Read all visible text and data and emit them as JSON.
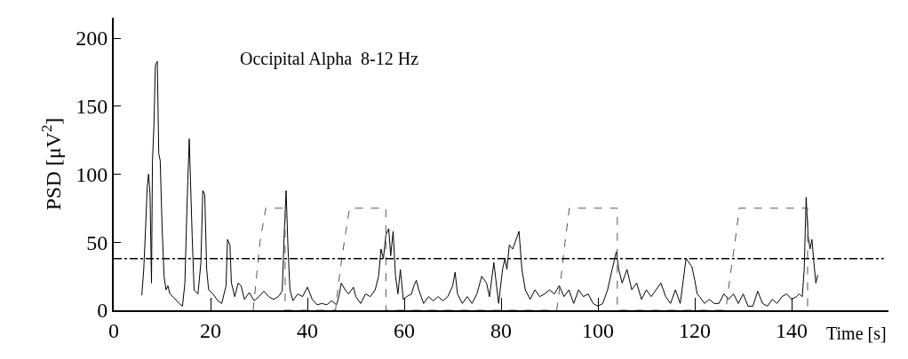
{
  "chart_data": {
    "type": "line",
    "xlabel": "Time [s]",
    "ylabel": "PSD [μV$^{2}$]",
    "annotations": [
      "Occipital Alpha  8-12 Hz"
    ],
    "xlim": [
      0,
      160
    ],
    "xticks": [
      0,
      20,
      40,
      60,
      80,
      100,
      120,
      140
    ],
    "ylim": [
      0,
      215
    ],
    "yticks": [
      0,
      50,
      100,
      150,
      200
    ],
    "marker": "none",
    "ref_lines": [
      {
        "axis": "y",
        "value": 38,
        "label": null,
        "color": "#000000",
        "line_style": "dashdot"
      }
    ],
    "series": [
      {
        "color": "#000000",
        "line_style": "solid",
        "x": [
          5.8,
          6.2,
          6.6,
          6.9,
          7.2,
          7.5,
          7.8,
          8.0,
          8.3,
          8.6,
          9.0,
          9.3,
          9.6,
          10.0,
          10.4,
          10.8,
          11.2,
          11.6,
          12.5,
          13.5,
          14.2,
          14.7,
          15.0,
          15.3,
          15.6,
          15.9,
          16.2,
          16.6,
          17.4,
          18.0,
          18.4,
          18.8,
          19.2,
          19.6,
          20.5,
          21.5,
          22.3,
          23.2,
          23.5,
          24.0,
          24.3,
          25.0,
          25.7,
          26.3,
          27,
          28,
          29,
          30,
          31,
          32,
          33,
          34,
          34.8,
          35.2,
          35.6,
          36.0,
          36.4,
          37,
          38,
          39,
          40,
          41,
          42,
          43,
          44,
          45,
          46,
          46.5,
          47,
          47.8,
          48.5,
          49.5,
          50,
          51,
          52,
          53,
          54,
          54.7,
          55.2,
          55.7,
          56.2,
          56.8,
          57.2,
          57.7,
          58.2,
          58.7,
          59.2,
          59.8,
          60.5,
          61.5,
          62,
          62.5,
          63,
          64,
          65,
          66,
          67,
          68,
          69,
          70,
          70.5,
          71,
          72,
          73,
          74,
          75,
          76,
          77,
          77.6,
          78.5,
          79.5,
          80.3,
          80.8,
          81.2,
          81.7,
          82.4,
          83.7,
          84.3,
          85,
          86,
          87,
          88,
          89,
          90,
          91,
          92,
          93,
          94,
          95,
          96,
          97,
          98,
          99,
          100,
          101,
          102,
          102.8,
          103.8,
          104.3,
          105,
          106,
          107,
          108,
          109,
          110,
          111,
          112,
          113,
          114,
          115,
          116,
          117,
          118.2,
          119.4,
          120,
          120.5,
          121,
          122,
          123,
          124,
          125,
          126,
          127,
          128,
          129,
          130,
          131,
          132,
          133,
          134,
          135,
          136,
          137,
          138,
          139,
          140,
          141,
          141.6,
          142.2,
          142.6,
          143.0,
          143.4,
          143.8,
          144.2,
          144.6,
          145.0,
          145.4
        ],
        "values": [
          11,
          30,
          62,
          90,
          100,
          85,
          20,
          110,
          135,
          180,
          183,
          115,
          110,
          60,
          25,
          15,
          18,
          12,
          9,
          5,
          3,
          20,
          60,
          95,
          126,
          90,
          55,
          15,
          12,
          35,
          88,
          85,
          30,
          15,
          12,
          7,
          5,
          18,
          52,
          48,
          20,
          10,
          20,
          18,
          8,
          13,
          7,
          10,
          14,
          10,
          8,
          10,
          14,
          55,
          88,
          45,
          15,
          7,
          12,
          10,
          17,
          8,
          4,
          5,
          4,
          7,
          4,
          10,
          20,
          15,
          12,
          17,
          10,
          5,
          12,
          10,
          15,
          25,
          45,
          38,
          55,
          60,
          40,
          58,
          25,
          12,
          30,
          8,
          10,
          12,
          18,
          22,
          15,
          5,
          10,
          7,
          10,
          7,
          10,
          18,
          28,
          12,
          5,
          10,
          5,
          12,
          25,
          20,
          10,
          35,
          5,
          30,
          38,
          30,
          48,
          45,
          58,
          30,
          15,
          8,
          15,
          10,
          12,
          15,
          12,
          18,
          10,
          15,
          5,
          15,
          10,
          12,
          5,
          3,
          5,
          15,
          28,
          43,
          30,
          20,
          30,
          15,
          20,
          8,
          15,
          10,
          15,
          20,
          10,
          5,
          15,
          5,
          38,
          32,
          22,
          12,
          10,
          5,
          8,
          5,
          5,
          12,
          8,
          12,
          5,
          12,
          3,
          3,
          14,
          5,
          3,
          8,
          5,
          10,
          12,
          8,
          10,
          12,
          10,
          30,
          83,
          55,
          45,
          52,
          35,
          20,
          26
        ]
      },
      {
        "color": "#555555",
        "line_style": "dashed",
        "x": [
          28.8,
          29.5,
          30.2,
          31.4,
          35.4,
          35.4,
          45.8,
          46.6,
          47.6,
          48.7,
          56.2,
          56.2,
          91.5,
          92.4,
          93.2,
          94.1,
          104.0,
          104.0,
          126.4,
          127.3,
          128.3,
          129.2,
          143.3,
          143.3
        ],
        "values": [
          0,
          25,
          50,
          75,
          75,
          0,
          0,
          25,
          50,
          75,
          75,
          0,
          0,
          25,
          50,
          75,
          75,
          0,
          0,
          25,
          50,
          75,
          75,
          0
        ]
      }
    ]
  }
}
